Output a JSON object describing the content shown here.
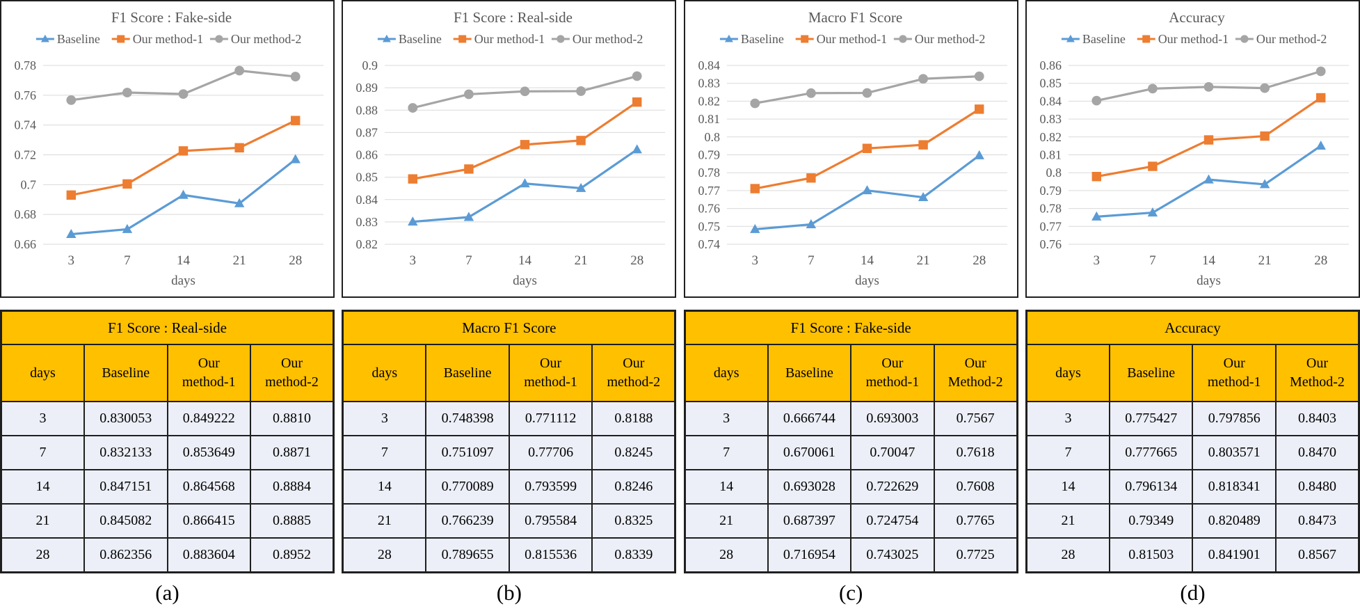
{
  "captions": [
    "(a)",
    "(b)",
    "(c)",
    "(d)"
  ],
  "colors": {
    "baseline": "#5B9BD5",
    "method1": "#ED7D31",
    "method2": "#A5A5A5",
    "grid": "#D9D9D9",
    "chart_text": "#595959",
    "table_header_bg": "#FFC000",
    "table_row_bg": "#ECEFF7",
    "border": "#1f1f1f"
  },
  "chart_data": [
    {
      "type": "line",
      "title": "F1 Score : Fake-side",
      "xlabel": "days",
      "categories": [
        "3",
        "7",
        "14",
        "21",
        "28"
      ],
      "ylim": [
        0.66,
        0.78
      ],
      "ytick_step": 0.02,
      "grid": true,
      "legend_position": "top",
      "series": [
        {
          "name": "Baseline",
          "marker": "triangle",
          "color": "#5B9BD5",
          "values": [
            0.666744,
            0.670061,
            0.693028,
            0.687397,
            0.716954
          ]
        },
        {
          "name": "Our method-1",
          "marker": "square",
          "color": "#ED7D31",
          "values": [
            0.693003,
            0.70047,
            0.722629,
            0.724754,
            0.743025
          ]
        },
        {
          "name": "Our method-2",
          "marker": "circle",
          "color": "#A5A5A5",
          "values": [
            0.7567,
            0.7618,
            0.7608,
            0.7765,
            0.7725
          ]
        }
      ]
    },
    {
      "type": "line",
      "title": "F1 Score : Real-side",
      "xlabel": "days",
      "categories": [
        "3",
        "7",
        "14",
        "21",
        "28"
      ],
      "ylim": [
        0.82,
        0.9
      ],
      "ytick_step": 0.01,
      "grid": true,
      "legend_position": "top",
      "series": [
        {
          "name": "Baseline",
          "marker": "triangle",
          "color": "#5B9BD5",
          "values": [
            0.830053,
            0.832133,
            0.847151,
            0.845082,
            0.862356
          ]
        },
        {
          "name": "Our method-1",
          "marker": "square",
          "color": "#ED7D31",
          "values": [
            0.849222,
            0.853649,
            0.864568,
            0.866415,
            0.883604
          ]
        },
        {
          "name": "Our method-2",
          "marker": "circle",
          "color": "#A5A5A5",
          "values": [
            0.881,
            0.8871,
            0.8884,
            0.8885,
            0.8952
          ]
        }
      ]
    },
    {
      "type": "line",
      "title": "Macro F1 Score",
      "xlabel": "days",
      "categories": [
        "3",
        "7",
        "14",
        "21",
        "28"
      ],
      "ylim": [
        0.74,
        0.84
      ],
      "ytick_step": 0.01,
      "grid": true,
      "legend_position": "top",
      "series": [
        {
          "name": "Baseline",
          "marker": "triangle",
          "color": "#5B9BD5",
          "values": [
            0.748398,
            0.751097,
            0.770089,
            0.766239,
            0.789655
          ]
        },
        {
          "name": "Our method-1",
          "marker": "square",
          "color": "#ED7D31",
          "values": [
            0.771112,
            0.77706,
            0.793599,
            0.795584,
            0.815536
          ]
        },
        {
          "name": "Our method-2",
          "marker": "circle",
          "color": "#A5A5A5",
          "values": [
            0.8188,
            0.8245,
            0.8246,
            0.8325,
            0.8339
          ]
        }
      ]
    },
    {
      "type": "line",
      "title": "Accuracy",
      "xlabel": "days",
      "categories": [
        "3",
        "7",
        "14",
        "21",
        "28"
      ],
      "ylim": [
        0.76,
        0.86
      ],
      "ytick_step": 0.01,
      "grid": true,
      "legend_position": "top",
      "series": [
        {
          "name": "Baseline",
          "marker": "triangle",
          "color": "#5B9BD5",
          "values": [
            0.775427,
            0.777665,
            0.796134,
            0.79349,
            0.81503
          ]
        },
        {
          "name": "Our method-1",
          "marker": "square",
          "color": "#ED7D31",
          "values": [
            0.797856,
            0.803571,
            0.818341,
            0.820489,
            0.841901
          ]
        },
        {
          "name": "Our method-2",
          "marker": "circle",
          "color": "#A5A5A5",
          "values": [
            0.8403,
            0.847,
            0.848,
            0.8473,
            0.8567
          ]
        }
      ]
    }
  ],
  "tables": [
    {
      "title": "F1 Score : Real-side",
      "headers": [
        "days",
        "Baseline",
        "Our\nmethod-1",
        "Our\nmethod-2"
      ],
      "rows": [
        [
          "3",
          "0.830053",
          "0.849222",
          "0.8810"
        ],
        [
          "7",
          "0.832133",
          "0.853649",
          "0.8871"
        ],
        [
          "14",
          "0.847151",
          "0.864568",
          "0.8884"
        ],
        [
          "21",
          "0.845082",
          "0.866415",
          "0.8885"
        ],
        [
          "28",
          "0.862356",
          "0.883604",
          "0.8952"
        ]
      ]
    },
    {
      "title": "Macro F1 Score",
      "headers": [
        "days",
        "Baseline",
        "Our\nmethod-1",
        "Our\nmethod-2"
      ],
      "rows": [
        [
          "3",
          "0.748398",
          "0.771112",
          "0.8188"
        ],
        [
          "7",
          "0.751097",
          "0.77706",
          "0.8245"
        ],
        [
          "14",
          "0.770089",
          "0.793599",
          "0.8246"
        ],
        [
          "21",
          "0.766239",
          "0.795584",
          "0.8325"
        ],
        [
          "28",
          "0.789655",
          "0.815536",
          "0.8339"
        ]
      ]
    },
    {
      "title": "F1 Score : Fake-side",
      "headers": [
        "days",
        "Baseline",
        "Our\nmethod-1",
        "Our\nMethod-2"
      ],
      "rows": [
        [
          "3",
          "0.666744",
          "0.693003",
          "0.7567"
        ],
        [
          "7",
          "0.670061",
          "0.70047",
          "0.7618"
        ],
        [
          "14",
          "0.693028",
          "0.722629",
          "0.7608"
        ],
        [
          "21",
          "0.687397",
          "0.724754",
          "0.7765"
        ],
        [
          "28",
          "0.716954",
          "0.743025",
          "0.7725"
        ]
      ]
    },
    {
      "title": "Accuracy",
      "headers": [
        "days",
        "Baseline",
        "Our\nmethod-1",
        "Our\nMethod-2"
      ],
      "rows": [
        [
          "3",
          "0.775427",
          "0.797856",
          "0.8403"
        ],
        [
          "7",
          "0.777665",
          "0.803571",
          "0.8470"
        ],
        [
          "14",
          "0.796134",
          "0.818341",
          "0.8480"
        ],
        [
          "21",
          "0.79349",
          "0.820489",
          "0.8473"
        ],
        [
          "28",
          "0.81503",
          "0.841901",
          "0.8567"
        ]
      ]
    }
  ]
}
